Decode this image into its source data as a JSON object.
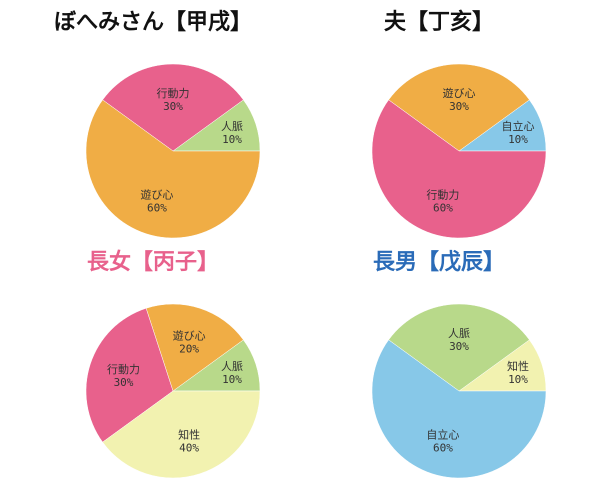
{
  "colors": {
    "kodoryoku": "#e8618c",
    "asobigokoro": "#f0ad45",
    "jinmyaku": "#b8d98a",
    "jiritsushin": "#87c8e8",
    "chisei": "#f2f2b0",
    "title_black": "#111111",
    "title_pink": "#e8618c",
    "title_blue": "#2a6bb8"
  },
  "chart_data": [
    {
      "type": "pie",
      "title": "ぼへみさん【甲戌】",
      "title_color": "#111111",
      "slices": [
        {
          "label": "人脈",
          "value": 10,
          "value_label": "10%",
          "color": "#b8d98a"
        },
        {
          "label": "行動力",
          "value": 30,
          "value_label": "30%",
          "color": "#e8618c"
        },
        {
          "label": "遊び心",
          "value": 60,
          "value_label": "60%",
          "color": "#f0ad45"
        }
      ]
    },
    {
      "type": "pie",
      "title": "夫【丁亥】",
      "title_color": "#111111",
      "slices": [
        {
          "label": "自立心",
          "value": 10,
          "value_label": "10%",
          "color": "#87c8e8"
        },
        {
          "label": "遊び心",
          "value": 30,
          "value_label": "30%",
          "color": "#f0ad45"
        },
        {
          "label": "行動力",
          "value": 60,
          "value_label": "60%",
          "color": "#e8618c"
        }
      ]
    },
    {
      "type": "pie",
      "title": "長女【丙子】",
      "title_color": "#e8618c",
      "slices": [
        {
          "label": "人脈",
          "value": 10,
          "value_label": "10%",
          "color": "#b8d98a"
        },
        {
          "label": "遊び心",
          "value": 20,
          "value_label": "20%",
          "color": "#f0ad45"
        },
        {
          "label": "行動力",
          "value": 30,
          "value_label": "30%",
          "color": "#e8618c"
        },
        {
          "label": "知性",
          "value": 40,
          "value_label": "40%",
          "color": "#f2f2b0"
        }
      ]
    },
    {
      "type": "pie",
      "title": "長男【戊辰】",
      "title_color": "#2a6bb8",
      "slices": [
        {
          "label": "知性",
          "value": 10,
          "value_label": "10%",
          "color": "#f2f2b0"
        },
        {
          "label": "人脈",
          "value": 30,
          "value_label": "30%",
          "color": "#b8d98a"
        },
        {
          "label": "自立心",
          "value": 60,
          "value_label": "60%",
          "color": "#87c8e8"
        }
      ]
    }
  ]
}
